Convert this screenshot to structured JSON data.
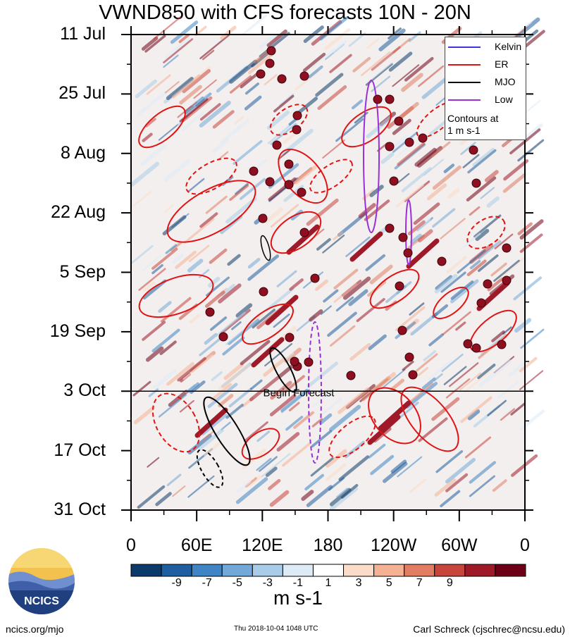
{
  "title": "VWND850 with CFS forecasts  10N - 20N",
  "chart_data": {
    "type": "heatmap",
    "title": "VWND850 with CFS forecasts  10N - 20N",
    "y_tick_labels": [
      "11 Jul",
      "25 Jul",
      "8 Aug",
      "22 Aug",
      "5 Sep",
      "19 Sep",
      "3 Oct",
      "17 Oct",
      "31 Oct"
    ],
    "x_tick_labels": [
      "0",
      "60E",
      "120E",
      "180",
      "120W",
      "60W",
      "0"
    ],
    "x_range_deg_east": [
      0,
      360
    ],
    "forecast_start": "3 Oct",
    "forecast_label": "Begin Forecast",
    "colorbar": {
      "unit": "m s-1",
      "tick_labels": [
        "-9",
        "-7",
        "-5",
        "-3",
        "-1",
        "1",
        "3",
        "5",
        "7",
        "9"
      ],
      "colors": [
        "#0c3a6a",
        "#1f5fa0",
        "#3f85c4",
        "#72a9d8",
        "#a9cde8",
        "#dcebf6",
        "#ffffff",
        "#fbdcc9",
        "#f4b193",
        "#e07d62",
        "#c8453d",
        "#9e1a28",
        "#6d0016"
      ]
    },
    "legend": [
      {
        "name": "Kelvin",
        "color": "#3b36e0"
      },
      {
        "name": "ER",
        "color": "#e01414"
      },
      {
        "name": "MJO",
        "color": "#000000"
      },
      {
        "name": "Low",
        "color": "#9b30d9"
      }
    ],
    "legend_note": [
      "Contours at",
      "1 m s-1"
    ]
  },
  "footer": {
    "left": "ncics.org/mjo",
    "middle": "Thu 2018-10-04 1048 UTC",
    "right": "Carl Schreck (cjschrec@ncsu.edu)",
    "logo_text": "NCICS"
  }
}
